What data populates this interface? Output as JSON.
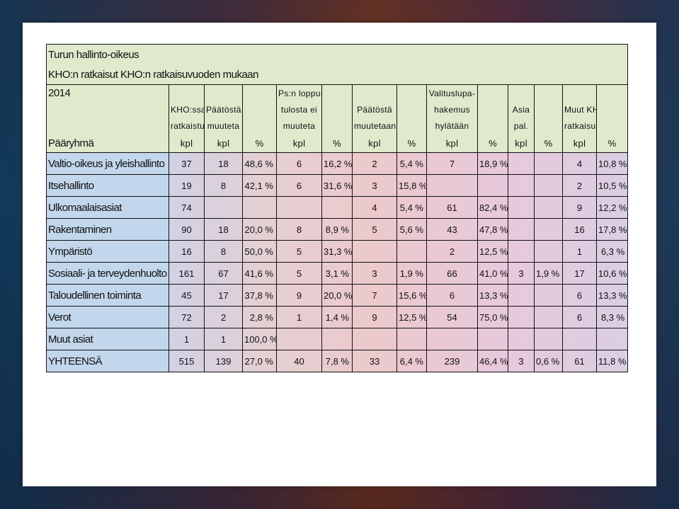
{
  "title_lines": [
    "Turun hallinto-oikeus",
    "KHO:n ratkaisut KHO:n ratkaisuvuoden mukaan",
    "2014"
  ],
  "header": {
    "col_titles": [
      [
        "",
        "KHO:ssa",
        "ratkaistu"
      ],
      [
        "",
        "Päätöstä ei",
        "muuteta"
      ],
      [
        "",
        "",
        ""
      ],
      [
        "Ps:n loppu-",
        "tulosta ei",
        "muuteta"
      ],
      [
        "",
        "",
        ""
      ],
      [
        "",
        "Päätöstä",
        "muutetaan"
      ],
      [
        "",
        "",
        ""
      ],
      [
        "Valituslupa-",
        "hakemus",
        "hylätään"
      ],
      [
        "",
        "",
        ""
      ],
      [
        "",
        "Asia",
        "pal."
      ],
      [
        "",
        "",
        ""
      ],
      [
        "",
        "Muut KHO",
        "ratkaisut"
      ],
      [
        "",
        "",
        ""
      ]
    ],
    "group_label": "Pääryhmä",
    "units": [
      "kpl",
      "kpl",
      "%",
      "kpl",
      "%",
      "kpl",
      "%",
      "kpl",
      "%",
      "kpl",
      "%",
      "kpl",
      "%"
    ]
  },
  "rows": [
    {
      "label": "Valtio-oikeus ja yleishallinto",
      "cells": [
        "37",
        "18",
        "48,6 %",
        "6",
        "16,2 %",
        "2",
        "5,4 %",
        "7",
        "18,9 %",
        "",
        "",
        "4",
        "10,8 %"
      ]
    },
    {
      "label": "Itsehallinto",
      "cells": [
        "19",
        "8",
        "42,1 %",
        "6",
        "31,6 %",
        "3",
        "15,8 %",
        "",
        "",
        "",
        "",
        "2",
        "10,5 %"
      ]
    },
    {
      "label": "Ulkomaalaisasiat",
      "cells": [
        "74",
        "",
        "",
        "",
        "",
        "4",
        "5,4 %",
        "61",
        "82,4 %",
        "",
        "",
        "9",
        "12,2 %"
      ]
    },
    {
      "label": "Rakentaminen",
      "cells": [
        "90",
        "18",
        "20,0 %",
        "8",
        "8,9 %",
        "5",
        "5,6 %",
        "43",
        "47,8 %",
        "",
        "",
        "16",
        "17,8 %"
      ]
    },
    {
      "label": "Ympäristö",
      "cells": [
        "16",
        "8",
        "50,0 %",
        "5",
        "31,3 %",
        "",
        "",
        "2",
        "12,5 %",
        "",
        "",
        "1",
        "6,3 %"
      ]
    },
    {
      "label": "Sosiaali- ja terveydenhuolto",
      "cells": [
        "161",
        "67",
        "41,6 %",
        "5",
        "3,1 %",
        "3",
        "1,9 %",
        "66",
        "41,0 %",
        "3",
        "1,9 %",
        "17",
        "10,6 %"
      ]
    },
    {
      "label": "Taloudellinen toiminta",
      "cells": [
        "45",
        "17",
        "37,8 %",
        "9",
        "20,0 %",
        "7",
        "15,6 %",
        "6",
        "13,3 %",
        "",
        "",
        "6",
        "13,3 %"
      ]
    },
    {
      "label": "Verot",
      "cells": [
        "72",
        "2",
        "2,8 %",
        "1",
        "1,4 %",
        "9",
        "12,5 %",
        "54",
        "75,0 %",
        "",
        "",
        "6",
        "8,3 %"
      ]
    },
    {
      "label": "Muut asiat",
      "cells": [
        "1",
        "1",
        "100,0 %",
        "",
        "",
        "",
        "",
        "",
        "",
        "",
        "",
        "",
        ""
      ]
    },
    {
      "label": "YHTEENSÄ",
      "cells": [
        "515",
        "139",
        "27,0 %",
        "40",
        "7,8 %",
        "33",
        "6,4 %",
        "239",
        "46,4 %",
        "3",
        "0,6 %",
        "61",
        "11,8 %"
      ]
    }
  ]
}
